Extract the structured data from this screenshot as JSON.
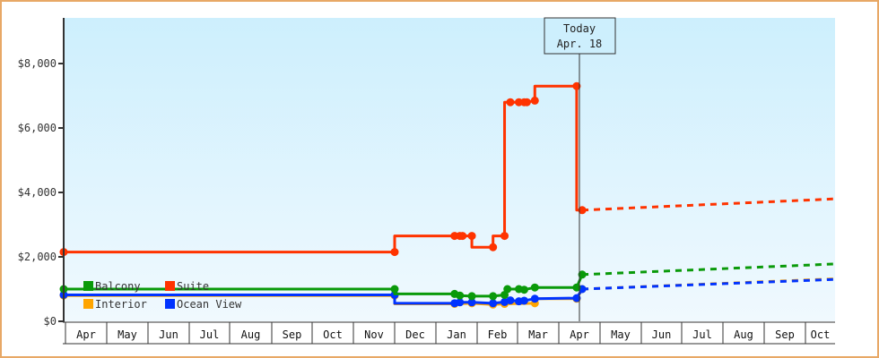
{
  "chart_data": {
    "type": "line",
    "title": "",
    "xlabel": "",
    "ylabel": "",
    "ylim": [
      0,
      9200
    ],
    "y_ticks": [
      {
        "value": 0,
        "label": "$0"
      },
      {
        "value": 2000,
        "label": "$2,000"
      },
      {
        "value": 4000,
        "label": "$4,000"
      },
      {
        "value": 6000,
        "label": "$6,000"
      },
      {
        "value": 8000,
        "label": "$8,000"
      }
    ],
    "x_months": [
      "Apr",
      "May",
      "Jun",
      "Jul",
      "Aug",
      "Sep",
      "Oct",
      "Nov",
      "Dec",
      "Jan",
      "Feb",
      "Mar",
      "Apr",
      "May",
      "Jun",
      "Jul",
      "Aug",
      "Sep",
      "Oct"
    ],
    "today_marker": {
      "line1": "Today",
      "line2": "Apr. 18"
    },
    "legend": [
      {
        "name": "Balcony",
        "color": "#0a9a0a"
      },
      {
        "name": "Suite",
        "color": "#ff3300"
      },
      {
        "name": "Interior",
        "color": "#ffa500"
      },
      {
        "name": "Ocean View",
        "color": "#0033ff"
      }
    ],
    "series": [
      {
        "name": "Suite",
        "color": "#ff3300",
        "history": [
          [
            "Apr (start)",
            2150
          ],
          [
            "Dec 1",
            2150
          ],
          [
            "Dec 1",
            2650
          ],
          [
            "Jan 15",
            2650
          ],
          [
            "Jan 19",
            2650
          ],
          [
            "Jan 21",
            2650
          ],
          [
            "Jan 28",
            2650
          ],
          [
            "Jan 28",
            2300
          ],
          [
            "Feb 12",
            2300
          ],
          [
            "Feb 12",
            2650
          ],
          [
            "Feb 20",
            2650
          ],
          [
            "Feb 20",
            6800
          ],
          [
            "Feb 24",
            6800
          ],
          [
            "Mar 2",
            6800
          ],
          [
            "Mar 6",
            6800
          ],
          [
            "Mar 8",
            6800
          ],
          [
            "Mar 14",
            6850
          ],
          [
            "Mar 14",
            7300
          ],
          [
            "Apr 14",
            7300
          ],
          [
            "Apr 14",
            3450
          ],
          [
            "Apr 18",
            3450
          ]
        ],
        "forecast": [
          [
            "Apr 18",
            3450
          ],
          [
            "Oct (end)",
            3800
          ]
        ]
      },
      {
        "name": "Balcony",
        "color": "#0a9a0a",
        "history": [
          [
            "Apr (start)",
            1000
          ],
          [
            "Dec 1",
            1000
          ],
          [
            "Dec 1",
            850
          ],
          [
            "Jan 15",
            850
          ],
          [
            "Jan 19",
            800
          ],
          [
            "Jan 28",
            780
          ],
          [
            "Feb 12",
            780
          ],
          [
            "Feb 20",
            820
          ],
          [
            "Feb 22",
            1000
          ],
          [
            "Mar 2",
            1000
          ],
          [
            "Mar 6",
            980
          ],
          [
            "Mar 14",
            1050
          ],
          [
            "Apr 14",
            1050
          ],
          [
            "Apr 18",
            1450
          ]
        ],
        "forecast": [
          [
            "Apr 18",
            1450
          ],
          [
            "Oct (end)",
            1780
          ]
        ]
      },
      {
        "name": "Ocean View",
        "color": "#0033ff",
        "history": [
          [
            "Apr (start)",
            820
          ],
          [
            "Dec 1",
            820
          ],
          [
            "Dec 1",
            560
          ],
          [
            "Jan 15",
            560
          ],
          [
            "Jan 19",
            590
          ],
          [
            "Jan 28",
            590
          ],
          [
            "Feb 12",
            560
          ],
          [
            "Feb 20",
            600
          ],
          [
            "Feb 24",
            650
          ],
          [
            "Mar 2",
            620
          ],
          [
            "Mar 6",
            640
          ],
          [
            "Mar 14",
            700
          ],
          [
            "Apr 14",
            720
          ],
          [
            "Apr 18",
            1000
          ]
        ],
        "forecast": [
          [
            "Apr 18",
            1000
          ],
          [
            "Oct (end)",
            1300
          ]
        ]
      },
      {
        "name": "Interior",
        "color": "#ffa500",
        "history": [
          [
            "Apr (start)",
            800
          ],
          [
            "Dec 1",
            800
          ],
          [
            "Dec 1",
            540
          ],
          [
            "Jan 15",
            540
          ],
          [
            "Jan 28",
            560
          ],
          [
            "Feb 12",
            520
          ],
          [
            "Feb 20",
            540
          ],
          [
            "Mar 14",
            560
          ],
          [
            "Mar 14",
            700
          ],
          [
            "Apr 14",
            700
          ],
          [
            "Apr 18",
            1000
          ]
        ],
        "forecast": [
          [
            "Apr 18",
            1000
          ],
          [
            "Oct (end)",
            1320
          ]
        ]
      }
    ],
    "grid": false,
    "legend_position": "inside-bottom-left"
  }
}
